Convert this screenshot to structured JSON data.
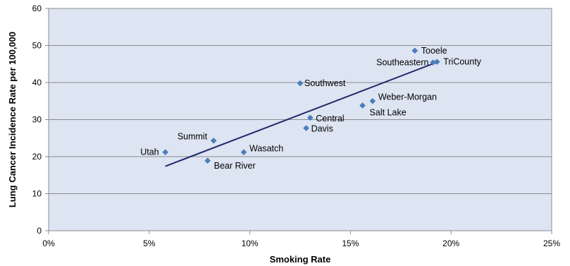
{
  "chart_data": {
    "type": "scatter",
    "title": "",
    "xlabel": "Smoking Rate",
    "ylabel": "Lung Cancer Incidence Rate per 100,000",
    "xlim": [
      0,
      0.25
    ],
    "ylim": [
      0,
      60
    ],
    "x_tick_values": [
      0,
      0.05,
      0.1,
      0.15,
      0.2,
      0.25
    ],
    "x_tick_labels": [
      "0%",
      "5%",
      "10%",
      "15%",
      "20%",
      "25%"
    ],
    "y_tick_values": [
      0,
      10,
      20,
      30,
      40,
      50,
      60
    ],
    "y_tick_labels": [
      "0",
      "10",
      "20",
      "30",
      "40",
      "50",
      "60"
    ],
    "grid": {
      "horizontal": true,
      "vertical": false
    },
    "legend": "none",
    "marker": "diamond",
    "marker_color": "#4a7ebb",
    "trendline_color": "#1f2a6b",
    "plot_background": "#dde4f2",
    "points": [
      {
        "name": "Utah",
        "x": 0.058,
        "y": 21.2
      },
      {
        "name": "Summit",
        "x": 0.082,
        "y": 24.3
      },
      {
        "name": "Bear River",
        "x": 0.079,
        "y": 18.9
      },
      {
        "name": "Wasatch",
        "x": 0.097,
        "y": 21.2
      },
      {
        "name": "Southwest",
        "x": 0.125,
        "y": 39.8
      },
      {
        "name": "Central",
        "x": 0.13,
        "y": 30.5
      },
      {
        "name": "Davis",
        "x": 0.128,
        "y": 27.7
      },
      {
        "name": "Salt Lake",
        "x": 0.156,
        "y": 33.8
      },
      {
        "name": "Weber-Morgan",
        "x": 0.161,
        "y": 35.0
      },
      {
        "name": "Tooele",
        "x": 0.182,
        "y": 48.6
      },
      {
        "name": "Southeastern",
        "x": 0.191,
        "y": 45.4
      },
      {
        "name": "TriCounty",
        "x": 0.193,
        "y": 45.6
      }
    ],
    "trendline": {
      "x": [
        0.058,
        0.193
      ],
      "y": [
        17.4,
        45.5
      ]
    }
  }
}
